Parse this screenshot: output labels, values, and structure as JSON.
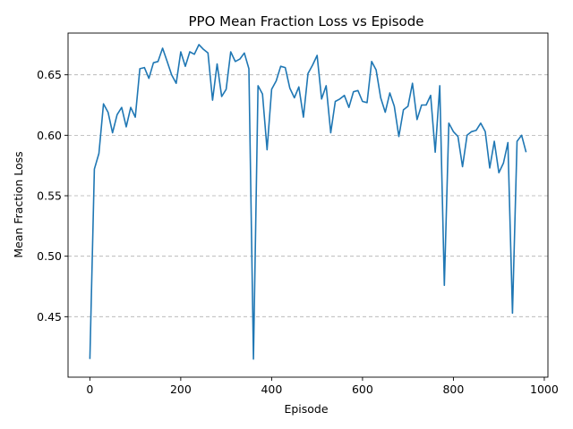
{
  "chart_data": {
    "type": "line",
    "title": "PPO Mean Fraction Loss vs Episode",
    "xlabel": "Episode",
    "ylabel": "Mean Fraction Loss",
    "xlim": [
      -48,
      1008
    ],
    "ylim": [
      0.4,
      0.6845
    ],
    "xticks": [
      0,
      200,
      400,
      600,
      800,
      1000
    ],
    "yticks": [
      0.45,
      0.5,
      0.55,
      0.6,
      0.65
    ],
    "ytick_labels": [
      "0.45",
      "0.50",
      "0.55",
      "0.60",
      "0.65"
    ],
    "grid": "horizontal-dashed",
    "line_color": "#1f77b4",
    "series": [
      {
        "x": [
          0,
          10,
          20,
          30,
          40,
          50,
          60,
          70,
          80,
          90,
          100,
          110,
          120,
          130,
          140,
          150,
          160,
          170,
          180,
          190,
          200,
          210,
          220,
          230,
          240,
          250,
          260,
          270,
          280,
          290,
          300,
          310,
          320,
          330,
          340,
          350,
          360,
          370,
          380,
          390,
          400,
          410,
          420,
          430,
          440,
          450,
          460,
          470,
          480,
          490,
          500,
          510,
          520,
          530,
          540,
          550,
          560,
          570,
          580,
          590,
          600,
          610,
          620,
          630,
          640,
          650,
          660,
          670,
          680,
          690,
          700,
          710,
          720,
          730,
          740,
          750,
          760,
          770,
          780,
          790,
          800,
          810,
          820,
          830,
          840,
          850,
          860,
          870,
          880,
          890,
          900,
          910,
          920,
          930,
          940,
          950,
          960
        ],
        "values": [
          0.415,
          0.572,
          0.585,
          0.626,
          0.619,
          0.602,
          0.617,
          0.623,
          0.607,
          0.623,
          0.615,
          0.655,
          0.656,
          0.647,
          0.66,
          0.661,
          0.672,
          0.661,
          0.65,
          0.643,
          0.669,
          0.657,
          0.669,
          0.667,
          0.675,
          0.671,
          0.668,
          0.629,
          0.659,
          0.632,
          0.638,
          0.669,
          0.661,
          0.663,
          0.668,
          0.655,
          0.415,
          0.641,
          0.634,
          0.588,
          0.638,
          0.645,
          0.657,
          0.656,
          0.639,
          0.631,
          0.64,
          0.615,
          0.651,
          0.658,
          0.666,
          0.63,
          0.641,
          0.602,
          0.628,
          0.63,
          0.633,
          0.623,
          0.636,
          0.637,
          0.628,
          0.627,
          0.661,
          0.654,
          0.631,
          0.619,
          0.635,
          0.624,
          0.599,
          0.621,
          0.624,
          0.643,
          0.613,
          0.625,
          0.625,
          0.633,
          0.586,
          0.641,
          0.476,
          0.61,
          0.603,
          0.599,
          0.574,
          0.6,
          0.603,
          0.604,
          0.61,
          0.603,
          0.573,
          0.595,
          0.569,
          0.577,
          0.594,
          0.453,
          0.595,
          0.6,
          0.586
        ]
      }
    ]
  }
}
